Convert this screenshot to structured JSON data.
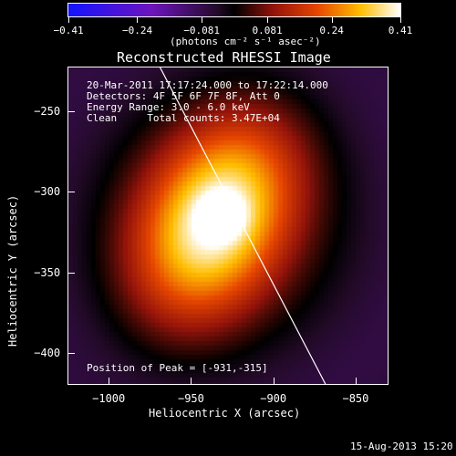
{
  "chart_data": {
    "type": "heatmap",
    "title": "Reconstructed RHESSI Image",
    "xlabel": "Heliocentric X (arcsec)",
    "ylabel": "Heliocentric Y (arcsec)",
    "xlim": [
      -1025,
      -830
    ],
    "ylim": [
      -420,
      -222
    ],
    "x_ticks": [
      -1000,
      -950,
      -900,
      -850
    ],
    "y_ticks": [
      -250,
      -300,
      -350,
      -400
    ],
    "x_tick_labels": [
      "−1000",
      "−950",
      "−900",
      "−850"
    ],
    "y_tick_labels": [
      "−250",
      "−300",
      "−350",
      "−400"
    ],
    "colorbar": {
      "ticks": [
        -0.41,
        -0.24,
        -0.081,
        0.081,
        0.24,
        0.41
      ],
      "tick_labels": [
        "−0.41",
        "−0.24",
        "−0.081",
        "0.081",
        "0.24",
        "0.41"
      ],
      "label": "(photons cm⁻² s⁻¹ asec⁻²)",
      "range": [
        -0.41,
        0.41
      ]
    },
    "peak": {
      "x": -931,
      "y": -315
    },
    "limb_line": [
      [
        -970,
        -220
      ],
      [
        -868,
        -420
      ]
    ],
    "annotations": {
      "time_range": "20-Mar-2011 17:17:24.000 to 17:22:14.000",
      "detectors": "Detectors: 4F 5F 6F 7F 8F, Att 0",
      "energy": "Energy Range: 3.0 - 6.0 keV",
      "method": "Clean     Total counts: 3.47E+04",
      "peak_text": "Position of Peak = [-931,-315]"
    },
    "footer_date": "15-Aug-2013 15:20",
    "colormap": "rainbow-blue-black-red-yellow-white"
  }
}
